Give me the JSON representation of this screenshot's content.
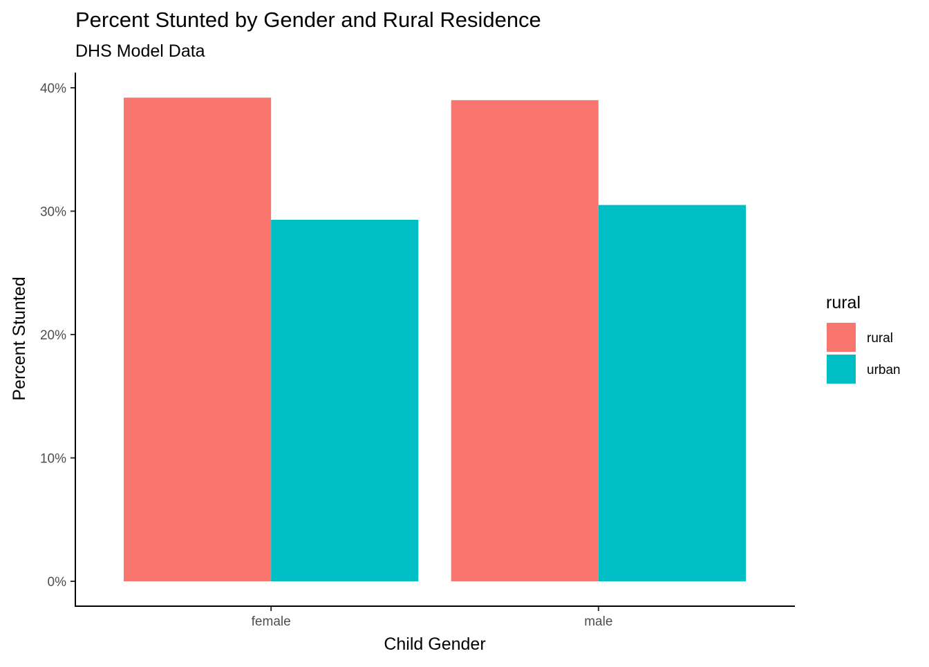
{
  "chart_data": {
    "type": "bar",
    "title": "Percent Stunted by Gender and Rural Residence",
    "subtitle": "DHS Model Data",
    "xlabel": "Child Gender",
    "ylabel": "Percent Stunted",
    "categories": [
      "female",
      "male"
    ],
    "series": [
      {
        "name": "rural",
        "values": [
          39.2,
          39.0
        ],
        "color": "#F8766D"
      },
      {
        "name": "urban",
        "values": [
          29.3,
          30.5
        ],
        "color": "#00BFC4"
      }
    ],
    "ylim": [
      0,
      40
    ],
    "yticks": [
      0,
      10,
      20,
      30,
      40
    ],
    "ytick_labels": [
      "0%",
      "10%",
      "20%",
      "30%",
      "40%"
    ],
    "grid": false,
    "legend": {
      "title": "rural",
      "placement": "right"
    }
  }
}
